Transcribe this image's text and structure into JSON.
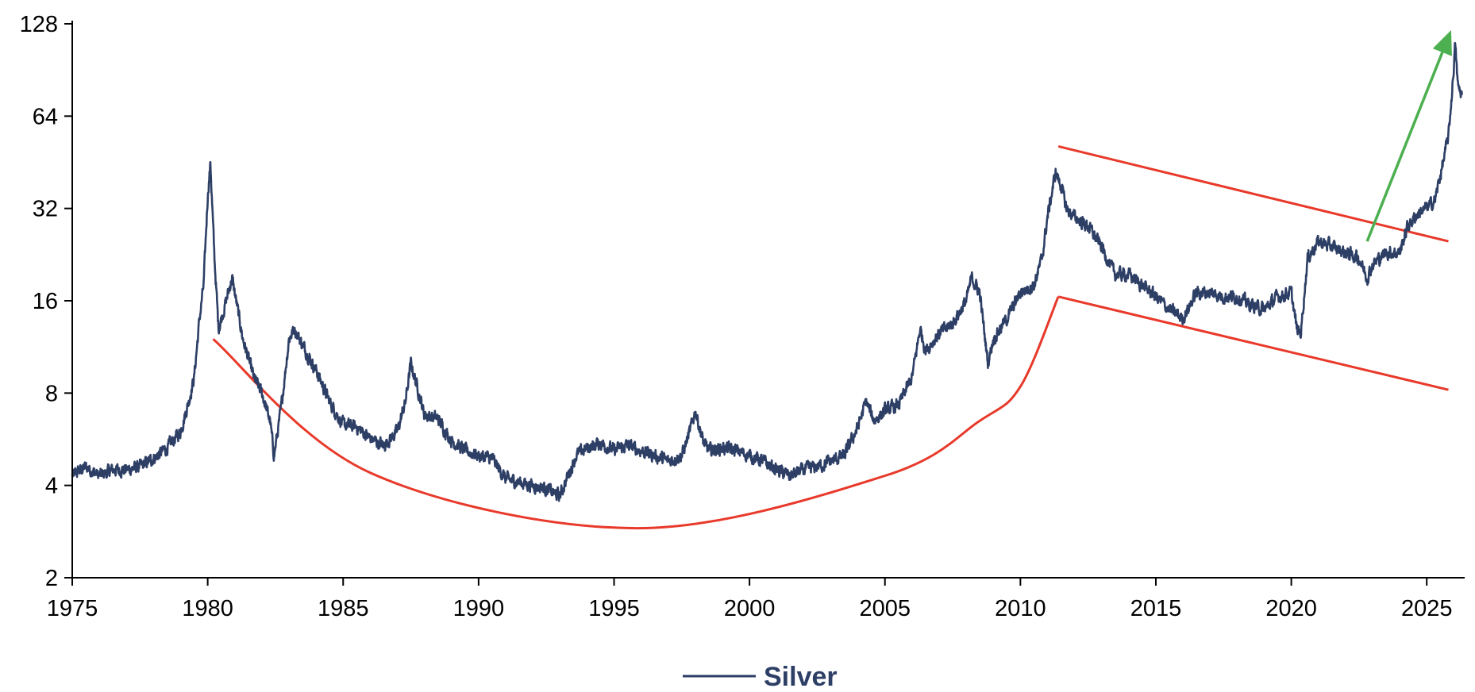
{
  "chart_data": {
    "type": "line",
    "title": "",
    "xlabel": "",
    "ylabel": "",
    "xlim": [
      1975,
      2026.4
    ],
    "ylim": [
      2,
      128
    ],
    "y_scale": "log2",
    "x_ticks": [
      "1975",
      "1980",
      "1985",
      "1990",
      "1995",
      "2000",
      "2005",
      "2010",
      "2015",
      "2020",
      "2025"
    ],
    "y_ticks": [
      "2",
      "4",
      "8",
      "16",
      "32",
      "64",
      "128"
    ],
    "grid": false,
    "legend": {
      "position": "bottom-center",
      "entries": [
        "Silver"
      ]
    },
    "series": [
      {
        "name": "Silver",
        "color": "#2e3f66",
        "x": [
          1975.0,
          1975.5,
          1976.0,
          1976.5,
          1977.0,
          1977.5,
          1978.0,
          1978.5,
          1979.0,
          1979.3,
          1979.5,
          1979.7,
          1979.85,
          1980.0,
          1980.1,
          1980.25,
          1980.4,
          1980.6,
          1980.9,
          1981.3,
          1981.7,
          1982.0,
          1982.3,
          1982.45,
          1982.7,
          1983.0,
          1983.2,
          1983.5,
          1984.0,
          1984.5,
          1985.0,
          1985.5,
          1986.0,
          1986.5,
          1987.0,
          1987.3,
          1987.5,
          1987.8,
          1988.0,
          1988.5,
          1989.0,
          1989.5,
          1990.0,
          1990.5,
          1991.0,
          1991.5,
          1992.0,
          1992.5,
          1993.0,
          1993.3,
          1993.6,
          1994.0,
          1994.5,
          1995.0,
          1995.5,
          1996.0,
          1996.5,
          1997.0,
          1997.5,
          1997.8,
          1998.0,
          1998.3,
          1998.5,
          1999.0,
          1999.5,
          2000.0,
          2000.5,
          2001.0,
          2001.5,
          2002.0,
          2002.5,
          2003.0,
          2003.5,
          2004.0,
          2004.3,
          2004.6,
          2005.0,
          2005.5,
          2006.0,
          2006.3,
          2006.5,
          2007.0,
          2007.5,
          2008.0,
          2008.2,
          2008.5,
          2008.8,
          2009.0,
          2009.5,
          2010.0,
          2010.5,
          2010.8,
          2011.0,
          2011.3,
          2011.5,
          2011.7,
          2012.0,
          2012.5,
          2013.0,
          2013.3,
          2013.5,
          2014.0,
          2014.5,
          2015.0,
          2015.5,
          2016.0,
          2016.5,
          2017.0,
          2017.5,
          2018.0,
          2018.5,
          2019.0,
          2019.5,
          2020.0,
          2020.2,
          2020.35,
          2020.6,
          2021.0,
          2021.5,
          2022.0,
          2022.5,
          2022.8,
          2023.0,
          2023.5,
          2024.0,
          2024.3,
          2024.7,
          2025.0,
          2025.3,
          2025.6,
          2025.8,
          2025.95,
          2026.05,
          2026.15,
          2026.3
        ],
        "values": [
          4.3,
          4.6,
          4.3,
          4.5,
          4.5,
          4.6,
          4.9,
          5.3,
          6.0,
          7.5,
          9.0,
          14.0,
          18.0,
          35.0,
          45.0,
          22.0,
          13.0,
          15.0,
          19.0,
          12.0,
          9.0,
          8.0,
          6.5,
          5.0,
          7.0,
          12.0,
          13.0,
          11.5,
          9.5,
          7.5,
          6.3,
          6.2,
          5.7,
          5.4,
          6.0,
          7.5,
          10.0,
          8.0,
          6.8,
          6.6,
          5.6,
          5.2,
          5.0,
          4.9,
          4.2,
          4.1,
          4.0,
          3.9,
          3.7,
          4.3,
          5.0,
          5.3,
          5.5,
          5.2,
          5.4,
          5.2,
          5.0,
          4.8,
          5.0,
          6.0,
          7.0,
          5.5,
          5.2,
          5.3,
          5.2,
          5.0,
          4.8,
          4.5,
          4.3,
          4.5,
          4.6,
          4.8,
          5.0,
          6.2,
          7.5,
          6.5,
          7.0,
          7.3,
          9.0,
          13.0,
          11.0,
          12.5,
          13.5,
          16.0,
          19.0,
          17.0,
          10.0,
          12.0,
          14.0,
          17.0,
          18.0,
          22.0,
          30.0,
          42.0,
          38.0,
          32.0,
          30.0,
          28.0,
          24.0,
          21.0,
          19.5,
          19.5,
          18.0,
          16.5,
          15.0,
          14.0,
          17.0,
          17.0,
          16.5,
          16.5,
          15.5,
          15.0,
          16.5,
          17.0,
          13.0,
          12.5,
          22.0,
          25.0,
          24.0,
          23.0,
          22.0,
          19.0,
          21.0,
          23.0,
          23.0,
          28.0,
          31.0,
          32.0,
          34.0,
          45.0,
          55.0,
          80.0,
          110.0,
          80.0,
          75.0
        ]
      }
    ],
    "overlays": [
      {
        "kind": "curve",
        "color": "#e8392a",
        "points": [
          [
            1980.2,
            12.0
          ],
          [
            1986.0,
            4.4
          ],
          [
            1995.8,
            2.9
          ],
          [
            2005.0,
            4.3
          ],
          [
            2008.5,
            6.5
          ],
          [
            2010.0,
            8.4
          ],
          [
            2011.4,
            16.5
          ]
        ]
      },
      {
        "kind": "line",
        "color": "#e8392a",
        "points": [
          [
            2011.4,
            16.5
          ],
          [
            2025.8,
            8.2
          ]
        ]
      },
      {
        "kind": "line",
        "color": "#e8392a",
        "points": [
          [
            2011.4,
            51.0
          ],
          [
            2025.8,
            25.0
          ]
        ]
      },
      {
        "kind": "arrow",
        "color": "#4caf50",
        "points": [
          [
            2022.8,
            25.0
          ],
          [
            2025.9,
            122.0
          ]
        ]
      }
    ]
  }
}
